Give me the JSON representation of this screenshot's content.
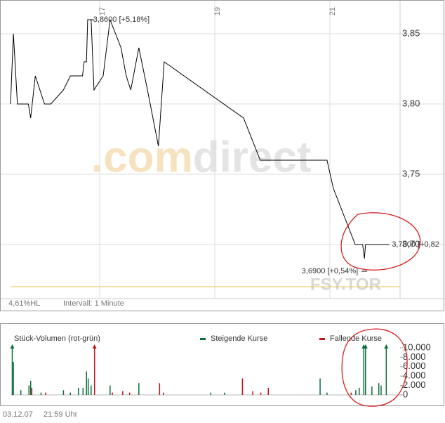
{
  "chart_data": [
    {
      "type": "line",
      "x": [
        15.45,
        15.5,
        15.57,
        15.76,
        15.8,
        15.88,
        16.04,
        16.15,
        16.37,
        16.49,
        16.7,
        16.73,
        16.77,
        16.79,
        16.85,
        16.9,
        17.06,
        17.18,
        17.37,
        17.46,
        17.54,
        17.68,
        17.83,
        18.02,
        18.12,
        19.5,
        19.79,
        20.95,
        21.06,
        21.44,
        21.57,
        21.6,
        21.62,
        21.98
      ],
      "values": [
        3.8,
        3.85,
        3.8,
        3.8,
        3.79,
        3.82,
        3.8,
        3.8,
        3.81,
        3.82,
        3.82,
        3.83,
        3.83,
        3.86,
        3.86,
        3.81,
        3.82,
        3.86,
        3.84,
        3.82,
        3.81,
        3.84,
        3.81,
        3.77,
        3.83,
        3.79,
        3.76,
        3.76,
        3.74,
        3.7,
        3.7,
        3.69,
        3.7,
        3.7
      ],
      "color": "#000000",
      "xlim": [
        15.45,
        22.22
      ],
      "xticks": [
        17,
        19,
        21
      ],
      "ylim": [
        3.6615,
        3.869
      ],
      "yticks": [
        {
          "value": 3.7,
          "label": "3,70"
        },
        {
          "value": 3.75,
          "label": "3,75"
        },
        {
          "value": 3.8,
          "label": "3,80"
        },
        {
          "value": 3.85,
          "label": "3,85"
        }
      ],
      "grid": true,
      "reference_line": 3.67,
      "reference_color": "#e6c84a",
      "annotations": [
        {
          "text": "3,8600 [+5,18%]",
          "x": 16.85,
          "y": 3.86
        },
        {
          "text": "3,6900 [+0,54%]",
          "x": 21.6,
          "y": 3.69
        },
        {
          "text": "3,7000 [+0,82",
          "x": 21.98,
          "y": 3.7
        }
      ],
      "watermark": ".comdirect",
      "symbol": "FSY.TOR",
      "notes": [
        "4,61%HL",
        "Intervall: 1 Minute"
      ]
    },
    {
      "type": "bar",
      "title": "Stück-Volumen (rot-grün)",
      "xlim": [
        15.45,
        22.22
      ],
      "ylim": [
        0,
        10000
      ],
      "yticks": [
        0,
        {
          "value": 2000,
          "label": "2.000"
        },
        {
          "value": 4000,
          "label": "4.000"
        },
        {
          "value": 6000,
          "label": "6.000"
        },
        {
          "value": 8000,
          "label": "8.000"
        },
        {
          "value": 10000,
          "label": "10.000"
        }
      ],
      "series": [
        {
          "name": "Steigende Kurse",
          "color": "#0b6e3a",
          "x": [
            15.48,
            15.5,
            15.63,
            15.77,
            15.8,
            15.98,
            16.37,
            16.49,
            16.63,
            16.71,
            16.77,
            16.8,
            16.85,
            17.18,
            17.68,
            18.93,
            19.17,
            20.83,
            20.95,
            21.45,
            21.51,
            21.59,
            21.62,
            21.73,
            21.85,
            21.89,
            21.98
          ],
          "values": [
            10000,
            7000,
            1000,
            2000,
            3000,
            500,
            1000,
            500,
            1500,
            1500,
            5000,
            3500,
            2000,
            2000,
            2500,
            500,
            500,
            3500,
            500,
            1000,
            1500,
            10000,
            10000,
            1800,
            2500,
            2000,
            10000
          ]
        },
        {
          "name": "Fallende Kurse",
          "color": "#c0141e",
          "x": [
            15.82,
            16.06,
            16.91,
            17.22,
            17.4,
            17.52,
            18.04,
            18.11,
            19.48,
            19.66,
            19.8,
            19.93,
            21.37
          ],
          "values": [
            1500,
            500,
            10000,
            500,
            800,
            500,
            2500,
            500,
            3500,
            800,
            500,
            1500,
            500
          ]
        }
      ]
    }
  ],
  "footer": {
    "date": "03.12.07",
    "time": "21:59 Uhr"
  }
}
